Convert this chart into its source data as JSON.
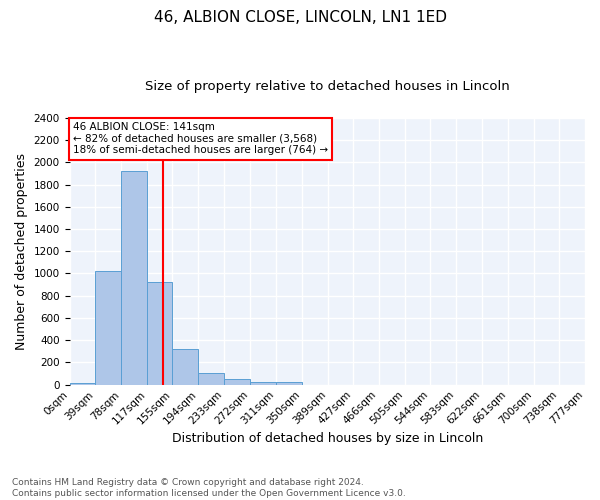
{
  "title1": "46, ALBION CLOSE, LINCOLN, LN1 1ED",
  "title2": "Size of property relative to detached houses in Lincoln",
  "xlabel": "Distribution of detached houses by size in Lincoln",
  "ylabel": "Number of detached properties",
  "bin_edges": [
    0,
    39,
    78,
    117,
    155,
    194,
    233,
    272,
    311,
    350,
    389,
    427,
    466,
    505,
    544,
    583,
    622,
    661,
    700,
    738,
    777
  ],
  "bin_labels": [
    "0sqm",
    "39sqm",
    "78sqm",
    "117sqm",
    "155sqm",
    "194sqm",
    "233sqm",
    "272sqm",
    "311sqm",
    "350sqm",
    "389sqm",
    "427sqm",
    "466sqm",
    "505sqm",
    "544sqm",
    "583sqm",
    "622sqm",
    "661sqm",
    "700sqm",
    "738sqm",
    "777sqm"
  ],
  "bar_heights": [
    20,
    1020,
    1920,
    920,
    320,
    105,
    50,
    28,
    22,
    0,
    0,
    0,
    0,
    0,
    0,
    0,
    0,
    0,
    0,
    0
  ],
  "bar_color": "#aec6e8",
  "bar_edge_color": "#5a9fd4",
  "property_line_x": 141,
  "property_line_color": "red",
  "annotation_text": "46 ALBION CLOSE: 141sqm\n← 82% of detached houses are smaller (3,568)\n18% of semi-detached houses are larger (764) →",
  "annotation_box_color": "white",
  "annotation_box_edge_color": "red",
  "ylim": [
    0,
    2400
  ],
  "yticks": [
    0,
    200,
    400,
    600,
    800,
    1000,
    1200,
    1400,
    1600,
    1800,
    2000,
    2200,
    2400
  ],
  "footnote": "Contains HM Land Registry data © Crown copyright and database right 2024.\nContains public sector information licensed under the Open Government Licence v3.0.",
  "bg_color": "#eef3fb",
  "grid_color": "white",
  "title1_fontsize": 11,
  "title2_fontsize": 9.5,
  "xlabel_fontsize": 9,
  "ylabel_fontsize": 9,
  "tick_fontsize": 7.5,
  "footnote_fontsize": 6.5
}
